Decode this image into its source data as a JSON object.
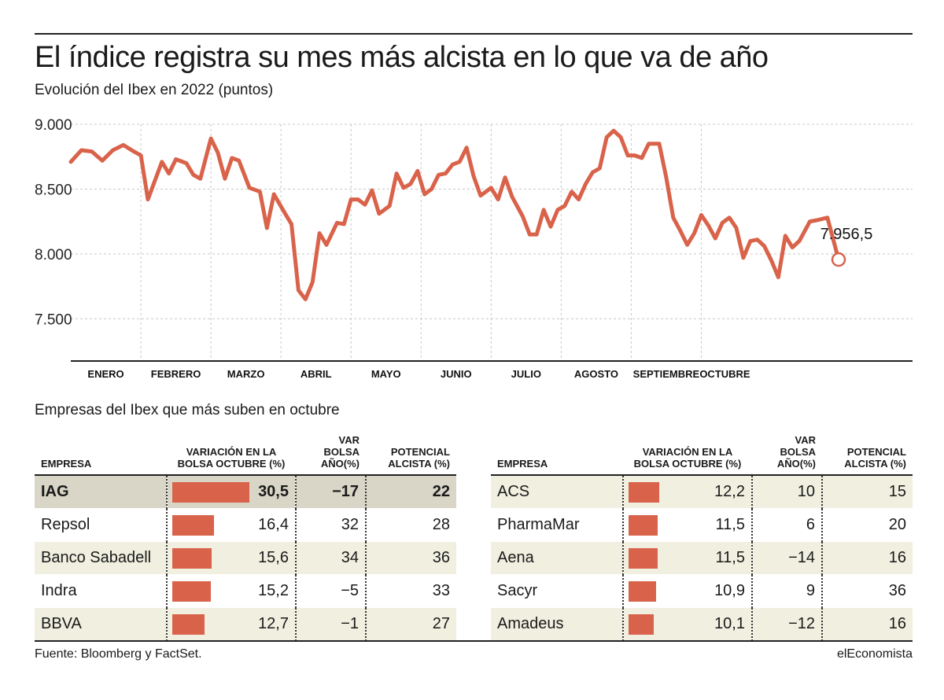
{
  "header": {
    "title": "El índice registra su mes más alcista en lo que va de año",
    "subtitle": "Evolución del Ibex en 2022 (puntos)"
  },
  "chart_data": {
    "type": "line",
    "title": "El índice registra su mes más alcista en lo que va de año",
    "subtitle": "Evolución del Ibex en 2022 (puntos)",
    "ylim": [
      7180,
      9000
    ],
    "yticks": [
      9000,
      8500,
      8000,
      7500
    ],
    "ytick_labels": [
      "9.000",
      "8.500",
      "8.000",
      "7.500"
    ],
    "xlim": [
      0,
      10.96
    ],
    "months": [
      "ENERO",
      "FEBRERO",
      "MARZO",
      "ABRIL",
      "MAYO",
      "JUNIO",
      "JULIO",
      "AGOSTO",
      "SEPTIEMBRE",
      "OCTUBRE"
    ],
    "grid": true,
    "color": "#d9634a",
    "last_value_label": "7.956,5",
    "series": [
      {
        "values": [
          [
            0.0,
            8710
          ],
          [
            0.15,
            8800
          ],
          [
            0.3,
            8790
          ],
          [
            0.45,
            8720
          ],
          [
            0.6,
            8800
          ],
          [
            0.75,
            8840
          ],
          [
            0.9,
            8790
          ],
          [
            1.0,
            8760
          ],
          [
            1.1,
            8420
          ],
          [
            1.3,
            8710
          ],
          [
            1.4,
            8620
          ],
          [
            1.5,
            8730
          ],
          [
            1.65,
            8700
          ],
          [
            1.75,
            8610
          ],
          [
            1.85,
            8580
          ],
          [
            2.0,
            8890
          ],
          [
            2.1,
            8780
          ],
          [
            2.2,
            8580
          ],
          [
            2.3,
            8740
          ],
          [
            2.4,
            8720
          ],
          [
            2.55,
            8510
          ],
          [
            2.7,
            8480
          ],
          [
            2.8,
            8200
          ],
          [
            2.9,
            8460
          ],
          [
            3.05,
            8320
          ],
          [
            3.15,
            8230
          ],
          [
            3.25,
            7720
          ],
          [
            3.35,
            7650
          ],
          [
            3.45,
            7780
          ],
          [
            3.55,
            8160
          ],
          [
            3.65,
            8070
          ],
          [
            3.8,
            8240
          ],
          [
            3.9,
            8230
          ],
          [
            4.0,
            8420
          ],
          [
            4.1,
            8420
          ],
          [
            4.2,
            8380
          ],
          [
            4.3,
            8490
          ],
          [
            4.4,
            8310
          ],
          [
            4.55,
            8370
          ],
          [
            4.65,
            8620
          ],
          [
            4.75,
            8510
          ],
          [
            4.85,
            8540
          ],
          [
            4.95,
            8640
          ],
          [
            5.05,
            8460
          ],
          [
            5.15,
            8500
          ],
          [
            5.25,
            8610
          ],
          [
            5.35,
            8620
          ],
          [
            5.45,
            8690
          ],
          [
            5.55,
            8710
          ],
          [
            5.65,
            8820
          ],
          [
            5.75,
            8600
          ],
          [
            5.85,
            8450
          ],
          [
            6.0,
            8510
          ],
          [
            6.1,
            8420
          ],
          [
            6.2,
            8590
          ],
          [
            6.3,
            8440
          ],
          [
            6.45,
            8290
          ],
          [
            6.55,
            8150
          ],
          [
            6.65,
            8150
          ],
          [
            6.75,
            8340
          ],
          [
            6.85,
            8210
          ],
          [
            6.95,
            8340
          ],
          [
            7.05,
            8370
          ],
          [
            7.15,
            8480
          ],
          [
            7.25,
            8420
          ],
          [
            7.35,
            8540
          ],
          [
            7.45,
            8630
          ],
          [
            7.55,
            8660
          ],
          [
            7.65,
            8900
          ],
          [
            7.75,
            8950
          ],
          [
            7.85,
            8900
          ],
          [
            7.95,
            8760
          ],
          [
            8.05,
            8760
          ],
          [
            8.15,
            8740
          ],
          [
            8.25,
            8850
          ],
          [
            8.4,
            8850
          ],
          [
            8.5,
            8590
          ],
          [
            8.6,
            8280
          ],
          [
            8.7,
            8180
          ],
          [
            8.8,
            8070
          ],
          [
            8.9,
            8160
          ],
          [
            9.0,
            8300
          ],
          [
            9.1,
            8220
          ],
          [
            9.2,
            8120
          ],
          [
            9.3,
            8240
          ],
          [
            9.4,
            8280
          ],
          [
            9.5,
            8200
          ],
          [
            9.6,
            7970
          ],
          [
            9.7,
            8100
          ],
          [
            9.8,
            8110
          ],
          [
            9.9,
            8060
          ],
          [
            10.0,
            7950
          ],
          [
            10.1,
            7820
          ],
          [
            10.2,
            8140
          ],
          [
            10.3,
            8050
          ],
          [
            10.4,
            8100
          ],
          [
            10.55,
            8250
          ],
          [
            10.65,
            8260
          ],
          [
            10.8,
            8280
          ],
          [
            10.96,
            7956.5
          ]
        ]
      }
    ]
  },
  "section": {
    "title": "Empresas del Ibex que más suben en octubre"
  },
  "table": {
    "headers": {
      "empresa": "EMPRESA",
      "variacion": [
        "VARIACIÓN EN LA",
        "BOLSA OCTUBRE (%)"
      ],
      "var_bolsa": [
        "VAR BOLSA",
        "AÑO(%)"
      ],
      "potencial": [
        "POTENCIAL",
        "ALCISTA (%)"
      ]
    },
    "bar_max": 30.5,
    "left": [
      {
        "empresa": "IAG",
        "variacion": 30.5,
        "variacion_label": "30,5",
        "var_bolsa": "−17",
        "potencial": "22"
      },
      {
        "empresa": "Repsol",
        "variacion": 16.4,
        "variacion_label": "16,4",
        "var_bolsa": "32",
        "potencial": "28"
      },
      {
        "empresa": "Banco Sabadell",
        "variacion": 15.6,
        "variacion_label": "15,6",
        "var_bolsa": "34",
        "potencial": "36"
      },
      {
        "empresa": "Indra",
        "variacion": 15.2,
        "variacion_label": "15,2",
        "var_bolsa": "−5",
        "potencial": "33"
      },
      {
        "empresa": "BBVA",
        "variacion": 12.7,
        "variacion_label": "12,7",
        "var_bolsa": "−1",
        "potencial": "27"
      }
    ],
    "right": [
      {
        "empresa": "ACS",
        "variacion": 12.2,
        "variacion_label": "12,2",
        "var_bolsa": "10",
        "potencial": "15"
      },
      {
        "empresa": "PharmaMar",
        "variacion": 11.5,
        "variacion_label": "11,5",
        "var_bolsa": "6",
        "potencial": "20"
      },
      {
        "empresa": "Aena",
        "variacion": 11.5,
        "variacion_label": "11,5",
        "var_bolsa": "−14",
        "potencial": "16"
      },
      {
        "empresa": "Sacyr",
        "variacion": 10.9,
        "variacion_label": "10,9",
        "var_bolsa": "9",
        "potencial": "36"
      },
      {
        "empresa": "Amadeus",
        "variacion": 10.1,
        "variacion_label": "10,1",
        "var_bolsa": "−12",
        "potencial": "16"
      }
    ]
  },
  "footer": {
    "source": "Fuente: Bloomberg y FactSet.",
    "brand": "elEconomista"
  }
}
